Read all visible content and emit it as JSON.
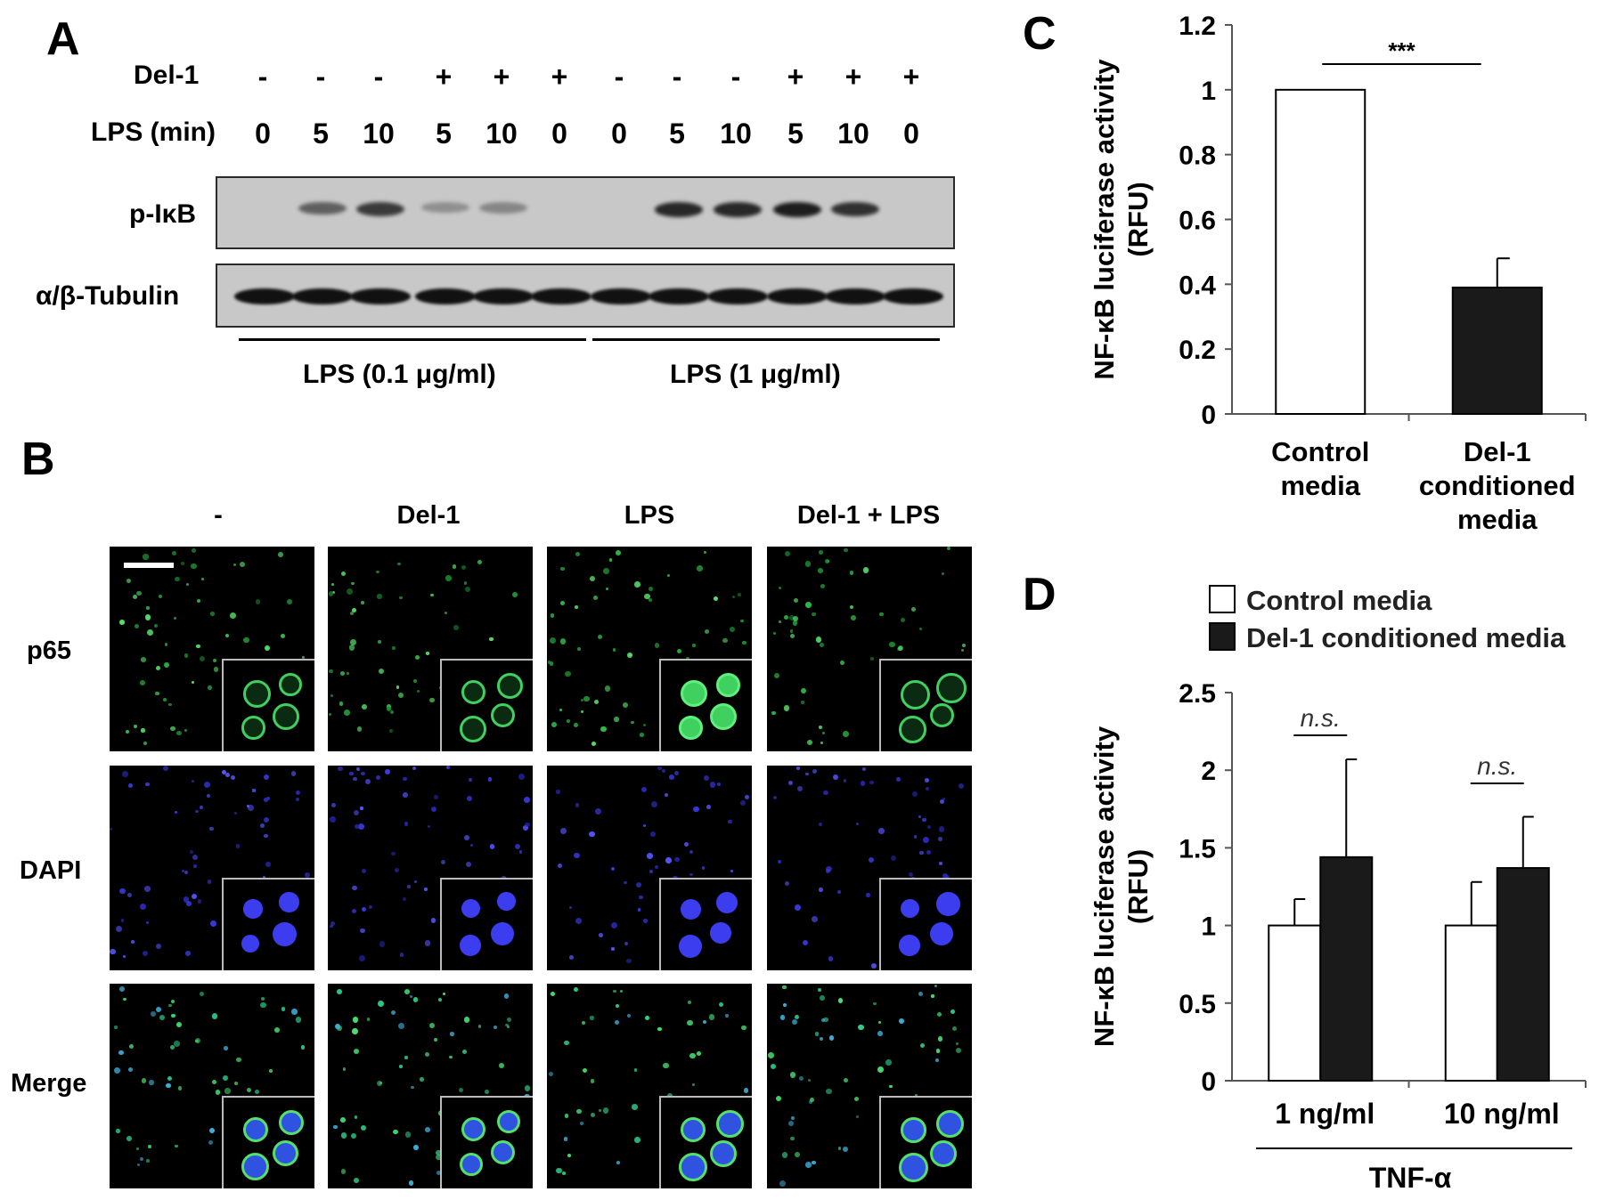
{
  "panels": {
    "a": "A",
    "b": "B",
    "c": "C",
    "d": "D"
  },
  "panel_a": {
    "rows": [
      {
        "label": "Del-1",
        "values": [
          "-",
          "-",
          "-",
          "+",
          "+",
          "+",
          "-",
          "-",
          "-",
          "+",
          "+",
          "+"
        ]
      },
      {
        "label": "LPS (min)",
        "values": [
          "0",
          "5",
          "10",
          "5",
          "10",
          "0",
          "0",
          "5",
          "10",
          "5",
          "10",
          "0"
        ]
      }
    ],
    "blot_labels": [
      "p-IκB",
      "α/β-Tubulin"
    ],
    "pikb_band_intensity": [
      0,
      0.55,
      0.75,
      0.3,
      0.35,
      0,
      0,
      0.85,
      0.85,
      0.9,
      0.8,
      0
    ],
    "groups": [
      "LPS (0.1 μg/ml)",
      "LPS (1 μg/ml)"
    ]
  },
  "panel_b": {
    "columns": [
      "-",
      "Del-1",
      "LPS",
      "Del-1 + LPS"
    ],
    "rows": [
      "p65",
      "DAPI",
      "Merge"
    ]
  },
  "chart_data": [
    {
      "type": "bar",
      "categories": [
        "Control media",
        "Del-1 conditioned media"
      ],
      "values": [
        1.0,
        0.39
      ],
      "errors": [
        0,
        0.09
      ],
      "bar_colors": [
        "#ffffff",
        "#1a1a1a"
      ],
      "ylabel": "NF-κB luciferase activity (RFU)",
      "ylim": [
        0,
        1.2
      ],
      "yticks": [
        "0",
        "0.2",
        "0.4",
        "0.6",
        "0.8",
        "1",
        "1.2"
      ],
      "significance": "***"
    },
    {
      "type": "bar",
      "categories": [
        "1 ng/ml",
        "10 ng/ml"
      ],
      "group_label": "TNF-α",
      "series": [
        {
          "name": "Control media",
          "values": [
            1.0,
            1.0
          ],
          "errors": [
            0.17,
            0.28
          ],
          "color": "#ffffff"
        },
        {
          "name": "Del-1 conditioned media",
          "values": [
            1.44,
            1.37
          ],
          "errors": [
            0.63,
            0.33
          ],
          "color": "#1a1a1a"
        }
      ],
      "ylabel": "NF-κB luciferase activity (RFU)",
      "ylim": [
        0,
        2.5
      ],
      "yticks": [
        "0",
        "0.5",
        "1",
        "1.5",
        "2",
        "2.5"
      ],
      "significance": [
        "n.s.",
        "n.s."
      ],
      "legend_position": "top"
    }
  ]
}
